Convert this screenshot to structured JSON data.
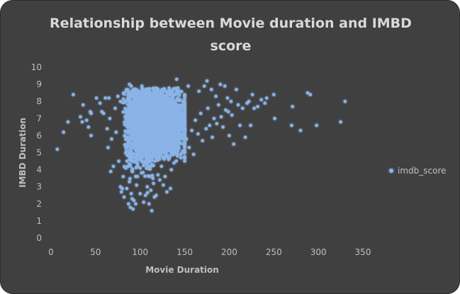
{
  "chart_data": {
    "type": "scatter",
    "title": "Relationship between Movie duration and IMBD score",
    "xlabel": "Movie Duration",
    "ylabel": "IMBD Duration",
    "xlim": [
      0,
      350
    ],
    "ylim": [
      0,
      10
    ],
    "xticks": [
      "0",
      "50",
      "100",
      "150",
      "200",
      "250",
      "300",
      "350"
    ],
    "yticks": [
      "0",
      "1",
      "2",
      "3",
      "4",
      "5",
      "6",
      "7",
      "8",
      "9",
      "10"
    ],
    "grid": false,
    "legend_position": "right",
    "series": [
      {
        "name": "imdb_score",
        "color": "#8ab4e8",
        "points": [
          [
            7,
            5.2
          ],
          [
            14,
            6.2
          ],
          [
            19,
            6.8
          ],
          [
            25,
            8.4
          ],
          [
            33,
            7.1
          ],
          [
            35,
            6.8
          ],
          [
            36,
            7.8
          ],
          [
            40,
            6.9
          ],
          [
            42,
            6.5
          ],
          [
            44,
            7.4
          ],
          [
            45,
            6.0
          ],
          [
            45,
            7.3
          ],
          [
            51,
            8.2
          ],
          [
            55,
            7.9
          ],
          [
            57,
            7.4
          ],
          [
            59,
            7.3
          ],
          [
            61,
            8.2
          ],
          [
            63,
            6.4
          ],
          [
            64,
            5.3
          ],
          [
            65,
            8.2
          ],
          [
            66,
            7.0
          ],
          [
            67,
            3.9
          ],
          [
            68,
            5.8
          ],
          [
            70,
            4.2
          ],
          [
            72,
            7.6
          ],
          [
            73,
            6.2
          ],
          [
            75,
            8.3
          ],
          [
            76,
            4.5
          ],
          [
            78,
            8.0
          ],
          [
            78,
            3.0
          ],
          [
            79,
            2.7
          ],
          [
            80,
            2.9
          ],
          [
            81,
            3.6
          ],
          [
            82,
            8.5
          ],
          [
            82,
            2.4
          ],
          [
            84,
            4.1
          ],
          [
            85,
            2.9
          ],
          [
            86,
            8.7
          ],
          [
            87,
            2.0
          ],
          [
            88,
            3.3
          ],
          [
            88,
            9.0
          ],
          [
            89,
            1.8
          ],
          [
            90,
            2.6
          ],
          [
            90,
            8.9
          ],
          [
            91,
            2.3
          ],
          [
            92,
            1.7
          ],
          [
            93,
            2.2
          ],
          [
            94,
            8.7
          ],
          [
            95,
            2.0
          ],
          [
            96,
            3.1
          ],
          [
            98,
            8.6
          ],
          [
            100,
            2.6
          ],
          [
            102,
            8.9
          ],
          [
            104,
            2.1
          ],
          [
            106,
            2.5
          ],
          [
            108,
            3.0
          ],
          [
            110,
            2.0
          ],
          [
            112,
            2.8
          ],
          [
            113,
            1.6
          ],
          [
            115,
            3.2
          ],
          [
            116,
            2.4
          ],
          [
            118,
            2.5
          ],
          [
            120,
            3.7
          ],
          [
            122,
            3.4
          ],
          [
            124,
            4.2
          ],
          [
            126,
            3.1
          ],
          [
            128,
            3.6
          ],
          [
            130,
            2.7
          ],
          [
            132,
            4.6
          ],
          [
            134,
            2.9
          ],
          [
            135,
            4.0
          ],
          [
            138,
            4.4
          ],
          [
            140,
            5.4
          ],
          [
            141,
            9.3
          ],
          [
            142,
            4.8
          ],
          [
            144,
            5.6
          ],
          [
            146,
            6.0
          ],
          [
            148,
            5.1
          ],
          [
            150,
            6.4
          ],
          [
            152,
            5.8
          ],
          [
            154,
            8.9
          ],
          [
            155,
            5.3
          ],
          [
            158,
            6.3
          ],
          [
            160,
            4.9
          ],
          [
            162,
            6.9
          ],
          [
            165,
            6.1
          ],
          [
            166,
            8.6
          ],
          [
            168,
            7.3
          ],
          [
            170,
            5.7
          ],
          [
            172,
            8.9
          ],
          [
            174,
            6.4
          ],
          [
            175,
            9.2
          ],
          [
            176,
            7.6
          ],
          [
            178,
            6.6
          ],
          [
            180,
            8.7
          ],
          [
            181,
            5.9
          ],
          [
            183,
            7.0
          ],
          [
            185,
            8.3
          ],
          [
            186,
            6.7
          ],
          [
            188,
            7.8
          ],
          [
            190,
            9.0
          ],
          [
            191,
            7.1
          ],
          [
            193,
            6.5
          ],
          [
            195,
            8.9
          ],
          [
            196,
            7.5
          ],
          [
            198,
            8.2
          ],
          [
            199,
            7.4
          ],
          [
            200,
            6.0
          ],
          [
            202,
            8.0
          ],
          [
            203,
            7.2
          ],
          [
            205,
            5.5
          ],
          [
            208,
            8.7
          ],
          [
            210,
            7.8
          ],
          [
            212,
            6.6
          ],
          [
            215,
            7.6
          ],
          [
            218,
            5.9
          ],
          [
            220,
            7.9
          ],
          [
            222,
            8.0
          ],
          [
            224,
            6.6
          ],
          [
            226,
            8.4
          ],
          [
            228,
            7.6
          ],
          [
            232,
            7.7
          ],
          [
            236,
            8.1
          ],
          [
            240,
            7.9
          ],
          [
            242,
            8.2
          ],
          [
            250,
            8.4
          ],
          [
            251,
            7.0
          ],
          [
            270,
            6.6
          ],
          [
            271,
            7.7
          ],
          [
            280,
            6.3
          ],
          [
            288,
            8.5
          ],
          [
            291,
            8.4
          ],
          [
            298,
            6.6
          ],
          [
            325,
            6.8
          ],
          [
            330,
            8.0
          ]
        ]
      }
    ]
  }
}
